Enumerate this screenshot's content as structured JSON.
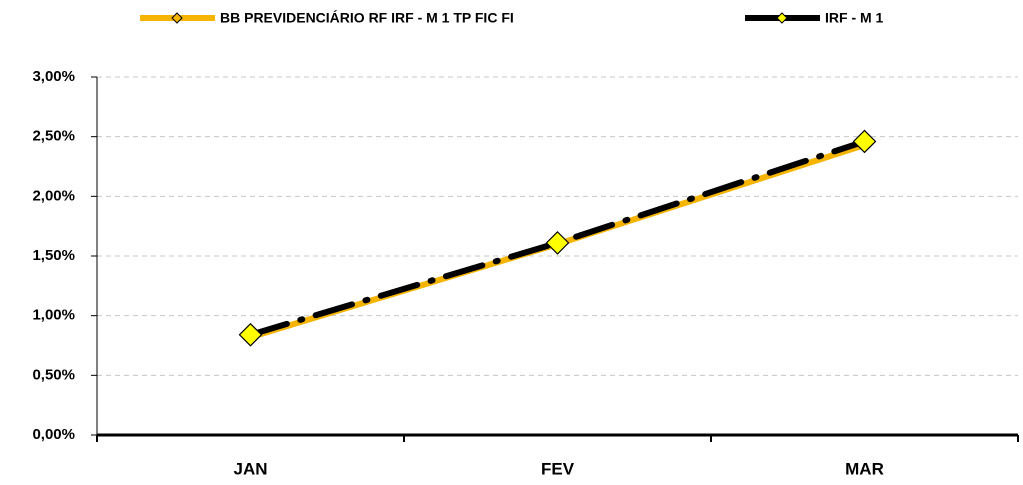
{
  "chart_data": {
    "type": "line",
    "categories": [
      "JAN",
      "FEV",
      "MAR"
    ],
    "series": [
      {
        "name": "BB PREVIDENCIÁRIO RF IRF - M 1 TP FIC FI",
        "color": "#f5b400",
        "marker_color": "#f5b400",
        "values": [
          0.82,
          1.6,
          2.43
        ]
      },
      {
        "name": "IRF - M 1",
        "color": "#000000",
        "marker_color": "#ffff00",
        "values": [
          0.84,
          1.61,
          2.46
        ]
      }
    ],
    "ylim": [
      0,
      3
    ],
    "yticks": [
      {
        "value": 0,
        "label": "0,00%"
      },
      {
        "value": 0.5,
        "label": "0,50%"
      },
      {
        "value": 1,
        "label": "1,00%"
      },
      {
        "value": 1.5,
        "label": "1,50%"
      },
      {
        "value": 2,
        "label": "2,00%"
      },
      {
        "value": 2.5,
        "label": "2,50%"
      },
      {
        "value": 3,
        "label": "3,00%"
      }
    ],
    "grid": true
  }
}
